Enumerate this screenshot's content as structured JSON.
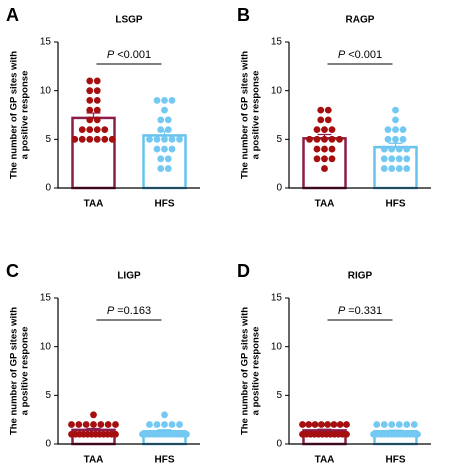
{
  "chart_data": [
    {
      "type": "bar",
      "panel": "A",
      "title": "LSGP",
      "ylabel": [
        "The number of GP sites with",
        "a positive response"
      ],
      "categories": [
        "TAA",
        "HFS"
      ],
      "values": [
        7.2,
        5.4
      ],
      "errors": [
        0.5,
        0.45
      ],
      "colors": [
        "#8c1d4b",
        "#67c3ee"
      ],
      "point_colors": [
        "#a50f0f",
        "#74c9f2"
      ],
      "points": [
        [
          11,
          11,
          10,
          10,
          9,
          9,
          8,
          8,
          7,
          7,
          6,
          6,
          6,
          6,
          5,
          5,
          5,
          5,
          5,
          5
        ],
        [
          9,
          9,
          9,
          8,
          7,
          7,
          6,
          6,
          5,
          5,
          5,
          5,
          5,
          4,
          4,
          4,
          3,
          3,
          2,
          2
        ]
      ],
      "p_label": "P",
      "p_value": "<0.001",
      "ylim": [
        0,
        15
      ],
      "yticks": [
        0,
        5,
        10,
        15
      ]
    },
    {
      "type": "bar",
      "panel": "B",
      "title": "RAGP",
      "ylabel": [
        "The number of GP sites with",
        "a positive response"
      ],
      "categories": [
        "TAA",
        "HFS"
      ],
      "values": [
        5.1,
        4.2
      ],
      "errors": [
        0.4,
        0.4
      ],
      "colors": [
        "#8c1d4b",
        "#67c3ee"
      ],
      "point_colors": [
        "#a50f0f",
        "#74c9f2"
      ],
      "points": [
        [
          8,
          8,
          7,
          7,
          6,
          6,
          6,
          5,
          5,
          5,
          5,
          5,
          4,
          4,
          4,
          3,
          3,
          3,
          2
        ],
        [
          8,
          7,
          6,
          6,
          6,
          5,
          5,
          5,
          4,
          4,
          4,
          4,
          3,
          3,
          3,
          3,
          2,
          2,
          2,
          2
        ]
      ],
      "p_label": "P",
      "p_value": "<0.001",
      "ylim": [
        0,
        15
      ],
      "yticks": [
        0,
        5,
        10,
        15
      ]
    },
    {
      "type": "bar",
      "panel": "C",
      "title": "LIGP",
      "ylabel": [
        "The number of GP sites with",
        "a positive response"
      ],
      "categories": [
        "TAA",
        "HFS"
      ],
      "values": [
        1.45,
        1.3
      ],
      "errors": [
        0.15,
        0.15
      ],
      "colors": [
        "#8c1d4b",
        "#67c3ee"
      ],
      "point_colors": [
        "#a50f0f",
        "#74c9f2"
      ],
      "points": [
        [
          3,
          2,
          2,
          2,
          2,
          2,
          2,
          2,
          1,
          1,
          1,
          1,
          1,
          1,
          1,
          1,
          1,
          1,
          1,
          1
        ],
        [
          3,
          2,
          2,
          2,
          2,
          2,
          1,
          1,
          1,
          1,
          1,
          1,
          1,
          1,
          1,
          1,
          1,
          1,
          1,
          1
        ]
      ],
      "p_label": "P",
      "p_value": "=0.163",
      "ylim": [
        0,
        15
      ],
      "yticks": [
        0,
        5,
        10,
        15
      ]
    },
    {
      "type": "bar",
      "panel": "D",
      "title": "RIGP",
      "ylabel": [
        "The number of GP sites with",
        "a positive response"
      ],
      "categories": [
        "TAA",
        "HFS"
      ],
      "values": [
        1.4,
        1.3
      ],
      "errors": [
        0.12,
        0.12
      ],
      "colors": [
        "#8c1d4b",
        "#67c3ee"
      ],
      "point_colors": [
        "#a50f0f",
        "#74c9f2"
      ],
      "points": [
        [
          2,
          2,
          2,
          2,
          2,
          2,
          2,
          2,
          1,
          1,
          1,
          1,
          1,
          1,
          1,
          1,
          1,
          1,
          1,
          1
        ],
        [
          2,
          2,
          2,
          2,
          2,
          2,
          1,
          1,
          1,
          1,
          1,
          1,
          1,
          1,
          1,
          1,
          1,
          1,
          1
        ]
      ],
      "p_label": "P",
      "p_value": "=0.331",
      "ylim": [
        0,
        15
      ],
      "yticks": [
        0,
        5,
        10,
        15
      ]
    }
  ]
}
